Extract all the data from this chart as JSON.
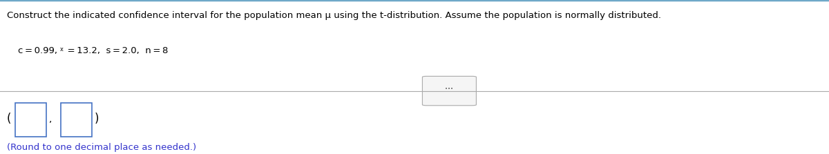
{
  "title_text": "Construct the indicated confidence interval for the population mean μ using the t-distribution. Assume the population is normally distributed.",
  "round_text": "(Round to one decimal place as needed.)",
  "bg_color": "#ffffff",
  "top_border_color": "#6fa8c8",
  "divider_color": "#aaaaaa",
  "text_color": "#000000",
  "blue_text_color": "#3333cc",
  "box_color": "#4472c4",
  "title_fontsize": 9.5,
  "params_fontsize": 9.5,
  "round_fontsize": 9.5,
  "figwidth": 12.0,
  "figheight": 2.23,
  "dpi": 100
}
